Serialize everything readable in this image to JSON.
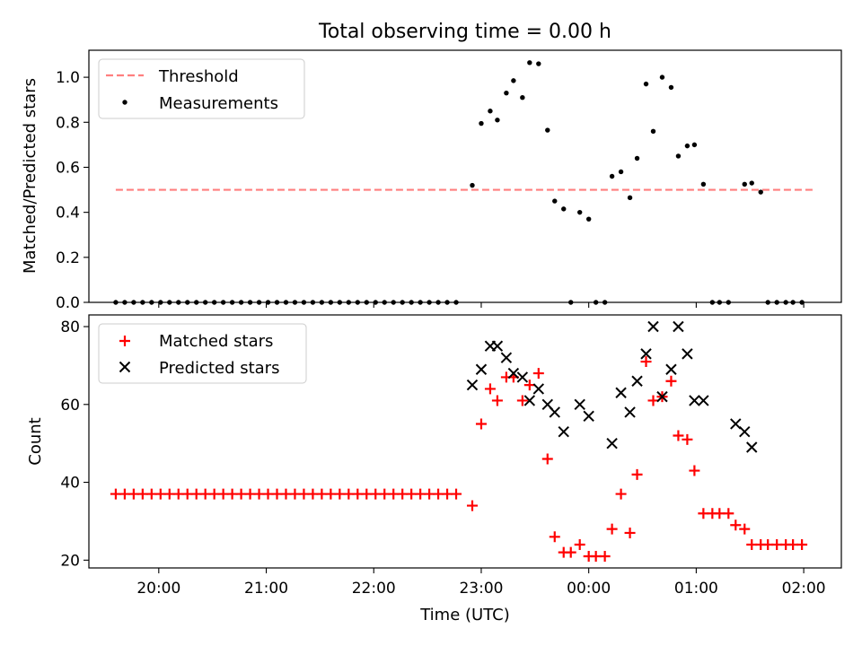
{
  "figure": {
    "title": "Total observing time = 0.00 h",
    "xlabel": "Time (UTC)"
  },
  "chart_data": [
    {
      "type": "scatter",
      "ylabel": "Matched/Predicted stars",
      "ylim": [
        0,
        1.12
      ],
      "yticks": [
        0.0,
        0.2,
        0.4,
        0.6,
        0.8,
        1.0
      ],
      "ytick_labels": [
        "0.0",
        "0.2",
        "0.4",
        "0.6",
        "0.8",
        "1.0"
      ],
      "legend": {
        "placement": "top-left",
        "entries": [
          "Threshold",
          "Measurements"
        ]
      },
      "series": [
        {
          "name": "Threshold",
          "kind": "dashed-line",
          "color": "#ff7f7f",
          "x": [
            "19:36",
            "02:06"
          ],
          "y": [
            0.5,
            0.5
          ]
        },
        {
          "name": "Measurements",
          "kind": "dots",
          "color": "#000000",
          "points": [
            [
              "19:36",
              0
            ],
            [
              "19:41",
              0
            ],
            [
              "19:46",
              0
            ],
            [
              "19:51",
              0
            ],
            [
              "19:56",
              0
            ],
            [
              "20:01",
              0
            ],
            [
              "20:06",
              0
            ],
            [
              "20:11",
              0
            ],
            [
              "20:16",
              0
            ],
            [
              "20:21",
              0
            ],
            [
              "20:26",
              0
            ],
            [
              "20:31",
              0
            ],
            [
              "20:36",
              0
            ],
            [
              "20:41",
              0
            ],
            [
              "20:46",
              0
            ],
            [
              "20:51",
              0
            ],
            [
              "20:56",
              0
            ],
            [
              "21:01",
              0
            ],
            [
              "21:06",
              0
            ],
            [
              "21:11",
              0
            ],
            [
              "21:16",
              0
            ],
            [
              "21:21",
              0
            ],
            [
              "21:26",
              0
            ],
            [
              "21:31",
              0
            ],
            [
              "21:36",
              0
            ],
            [
              "21:41",
              0
            ],
            [
              "21:46",
              0
            ],
            [
              "21:51",
              0
            ],
            [
              "21:56",
              0
            ],
            [
              "22:01",
              0
            ],
            [
              "22:06",
              0
            ],
            [
              "22:11",
              0
            ],
            [
              "22:16",
              0
            ],
            [
              "22:21",
              0
            ],
            [
              "22:26",
              0
            ],
            [
              "22:31",
              0
            ],
            [
              "22:36",
              0
            ],
            [
              "22:41",
              0
            ],
            [
              "22:46",
              0
            ],
            [
              "22:55",
              0.52
            ],
            [
              "23:00",
              0.795
            ],
            [
              "23:05",
              0.85
            ],
            [
              "23:09",
              0.81
            ],
            [
              "23:14",
              0.93
            ],
            [
              "23:18",
              0.985
            ],
            [
              "23:23",
              0.91
            ],
            [
              "23:27",
              1.065
            ],
            [
              "23:32",
              1.06
            ],
            [
              "23:37",
              0.765
            ],
            [
              "23:41",
              0.45
            ],
            [
              "23:46",
              0.415
            ],
            [
              "23:50",
              0
            ],
            [
              "23:55",
              0.4
            ],
            [
              "00:00",
              0.37
            ],
            [
              "00:04",
              0
            ],
            [
              "00:09",
              0
            ],
            [
              "00:13",
              0.56
            ],
            [
              "00:18",
              0.58
            ],
            [
              "00:23",
              0.465
            ],
            [
              "00:27",
              0.64
            ],
            [
              "00:32",
              0.97
            ],
            [
              "00:36",
              0.76
            ],
            [
              "00:41",
              1.0
            ],
            [
              "00:46",
              0.955
            ],
            [
              "00:50",
              0.65
            ],
            [
              "00:55",
              0.695
            ],
            [
              "00:59",
              0.7
            ],
            [
              "01:04",
              0.525
            ],
            [
              "01:09",
              0
            ],
            [
              "01:13",
              0
            ],
            [
              "01:18",
              0
            ],
            [
              "01:27",
              0.525
            ],
            [
              "01:31",
              0.53
            ],
            [
              "01:36",
              0.49
            ],
            [
              "01:40",
              0
            ],
            [
              "01:45",
              0
            ],
            [
              "01:50",
              0
            ],
            [
              "01:54",
              0
            ],
            [
              "01:59",
              0
            ]
          ]
        }
      ]
    },
    {
      "type": "scatter",
      "ylabel": "Count",
      "ylim": [
        18,
        83
      ],
      "yticks": [
        20,
        40,
        60,
        80
      ],
      "ytick_labels": [
        "20",
        "40",
        "60",
        "80"
      ],
      "legend": {
        "placement": "top-left",
        "entries": [
          "Matched stars",
          "Predicted stars"
        ]
      },
      "series": [
        {
          "name": "Matched stars",
          "kind": "plus",
          "color": "#ff0000",
          "points": [
            [
              "19:36",
              37
            ],
            [
              "19:41",
              37
            ],
            [
              "19:46",
              37
            ],
            [
              "19:51",
              37
            ],
            [
              "19:56",
              37
            ],
            [
              "20:01",
              37
            ],
            [
              "20:06",
              37
            ],
            [
              "20:11",
              37
            ],
            [
              "20:16",
              37
            ],
            [
              "20:21",
              37
            ],
            [
              "20:26",
              37
            ],
            [
              "20:31",
              37
            ],
            [
              "20:36",
              37
            ],
            [
              "20:41",
              37
            ],
            [
              "20:46",
              37
            ],
            [
              "20:51",
              37
            ],
            [
              "20:56",
              37
            ],
            [
              "21:01",
              37
            ],
            [
              "21:06",
              37
            ],
            [
              "21:11",
              37
            ],
            [
              "21:16",
              37
            ],
            [
              "21:21",
              37
            ],
            [
              "21:26",
              37
            ],
            [
              "21:31",
              37
            ],
            [
              "21:36",
              37
            ],
            [
              "21:41",
              37
            ],
            [
              "21:46",
              37
            ],
            [
              "21:51",
              37
            ],
            [
              "21:56",
              37
            ],
            [
              "22:01",
              37
            ],
            [
              "22:06",
              37
            ],
            [
              "22:11",
              37
            ],
            [
              "22:16",
              37
            ],
            [
              "22:21",
              37
            ],
            [
              "22:26",
              37
            ],
            [
              "22:31",
              37
            ],
            [
              "22:36",
              37
            ],
            [
              "22:41",
              37
            ],
            [
              "22:46",
              37
            ],
            [
              "22:55",
              34
            ],
            [
              "23:00",
              55
            ],
            [
              "23:05",
              64
            ],
            [
              "23:09",
              61
            ],
            [
              "23:14",
              67
            ],
            [
              "23:18",
              67
            ],
            [
              "23:23",
              61
            ],
            [
              "23:27",
              65
            ],
            [
              "23:32",
              68
            ],
            [
              "23:37",
              46
            ],
            [
              "23:41",
              26
            ],
            [
              "23:46",
              22
            ],
            [
              "23:50",
              22
            ],
            [
              "23:55",
              24
            ],
            [
              "00:00",
              21
            ],
            [
              "00:04",
              21
            ],
            [
              "00:09",
              21
            ],
            [
              "00:13",
              28
            ],
            [
              "00:18",
              37
            ],
            [
              "00:23",
              27
            ],
            [
              "00:27",
              42
            ],
            [
              "00:32",
              71
            ],
            [
              "00:36",
              61
            ],
            [
              "00:41",
              62
            ],
            [
              "00:46",
              66
            ],
            [
              "00:50",
              52
            ],
            [
              "00:55",
              51
            ],
            [
              "00:59",
              43
            ],
            [
              "01:04",
              32
            ],
            [
              "01:09",
              32
            ],
            [
              "01:13",
              32
            ],
            [
              "01:18",
              32
            ],
            [
              "01:22",
              29
            ],
            [
              "01:27",
              28
            ],
            [
              "01:31",
              24
            ],
            [
              "01:36",
              24
            ],
            [
              "01:40",
              24
            ],
            [
              "01:45",
              24
            ],
            [
              "01:50",
              24
            ],
            [
              "01:54",
              24
            ],
            [
              "01:59",
              24
            ]
          ]
        },
        {
          "name": "Predicted stars",
          "kind": "x",
          "color": "#000000",
          "points": [
            [
              "22:55",
              65
            ],
            [
              "23:00",
              69
            ],
            [
              "23:05",
              75
            ],
            [
              "23:09",
              75
            ],
            [
              "23:14",
              72
            ],
            [
              "23:18",
              68
            ],
            [
              "23:23",
              67
            ],
            [
              "23:27",
              61
            ],
            [
              "23:32",
              64
            ],
            [
              "23:37",
              60
            ],
            [
              "23:41",
              58
            ],
            [
              "23:46",
              53
            ],
            [
              "23:55",
              60
            ],
            [
              "00:00",
              57
            ],
            [
              "00:13",
              50
            ],
            [
              "00:18",
              63
            ],
            [
              "00:23",
              58
            ],
            [
              "00:27",
              66
            ],
            [
              "00:32",
              73
            ],
            [
              "00:36",
              80
            ],
            [
              "00:41",
              62
            ],
            [
              "00:46",
              69
            ],
            [
              "00:50",
              80
            ],
            [
              "00:55",
              73
            ],
            [
              "00:59",
              61
            ],
            [
              "01:04",
              61
            ],
            [
              "01:22",
              55
            ],
            [
              "01:27",
              53
            ],
            [
              "01:31",
              49
            ]
          ]
        }
      ]
    }
  ],
  "x_axis": {
    "range": [
      "19:21",
      "02:21"
    ],
    "ticks": [
      "20:00",
      "21:00",
      "22:00",
      "23:00",
      "00:00",
      "01:00",
      "02:00"
    ],
    "tick_labels": [
      "20:00",
      "21:00",
      "22:00",
      "23:00",
      "00:00",
      "01:00",
      "02:00"
    ]
  }
}
